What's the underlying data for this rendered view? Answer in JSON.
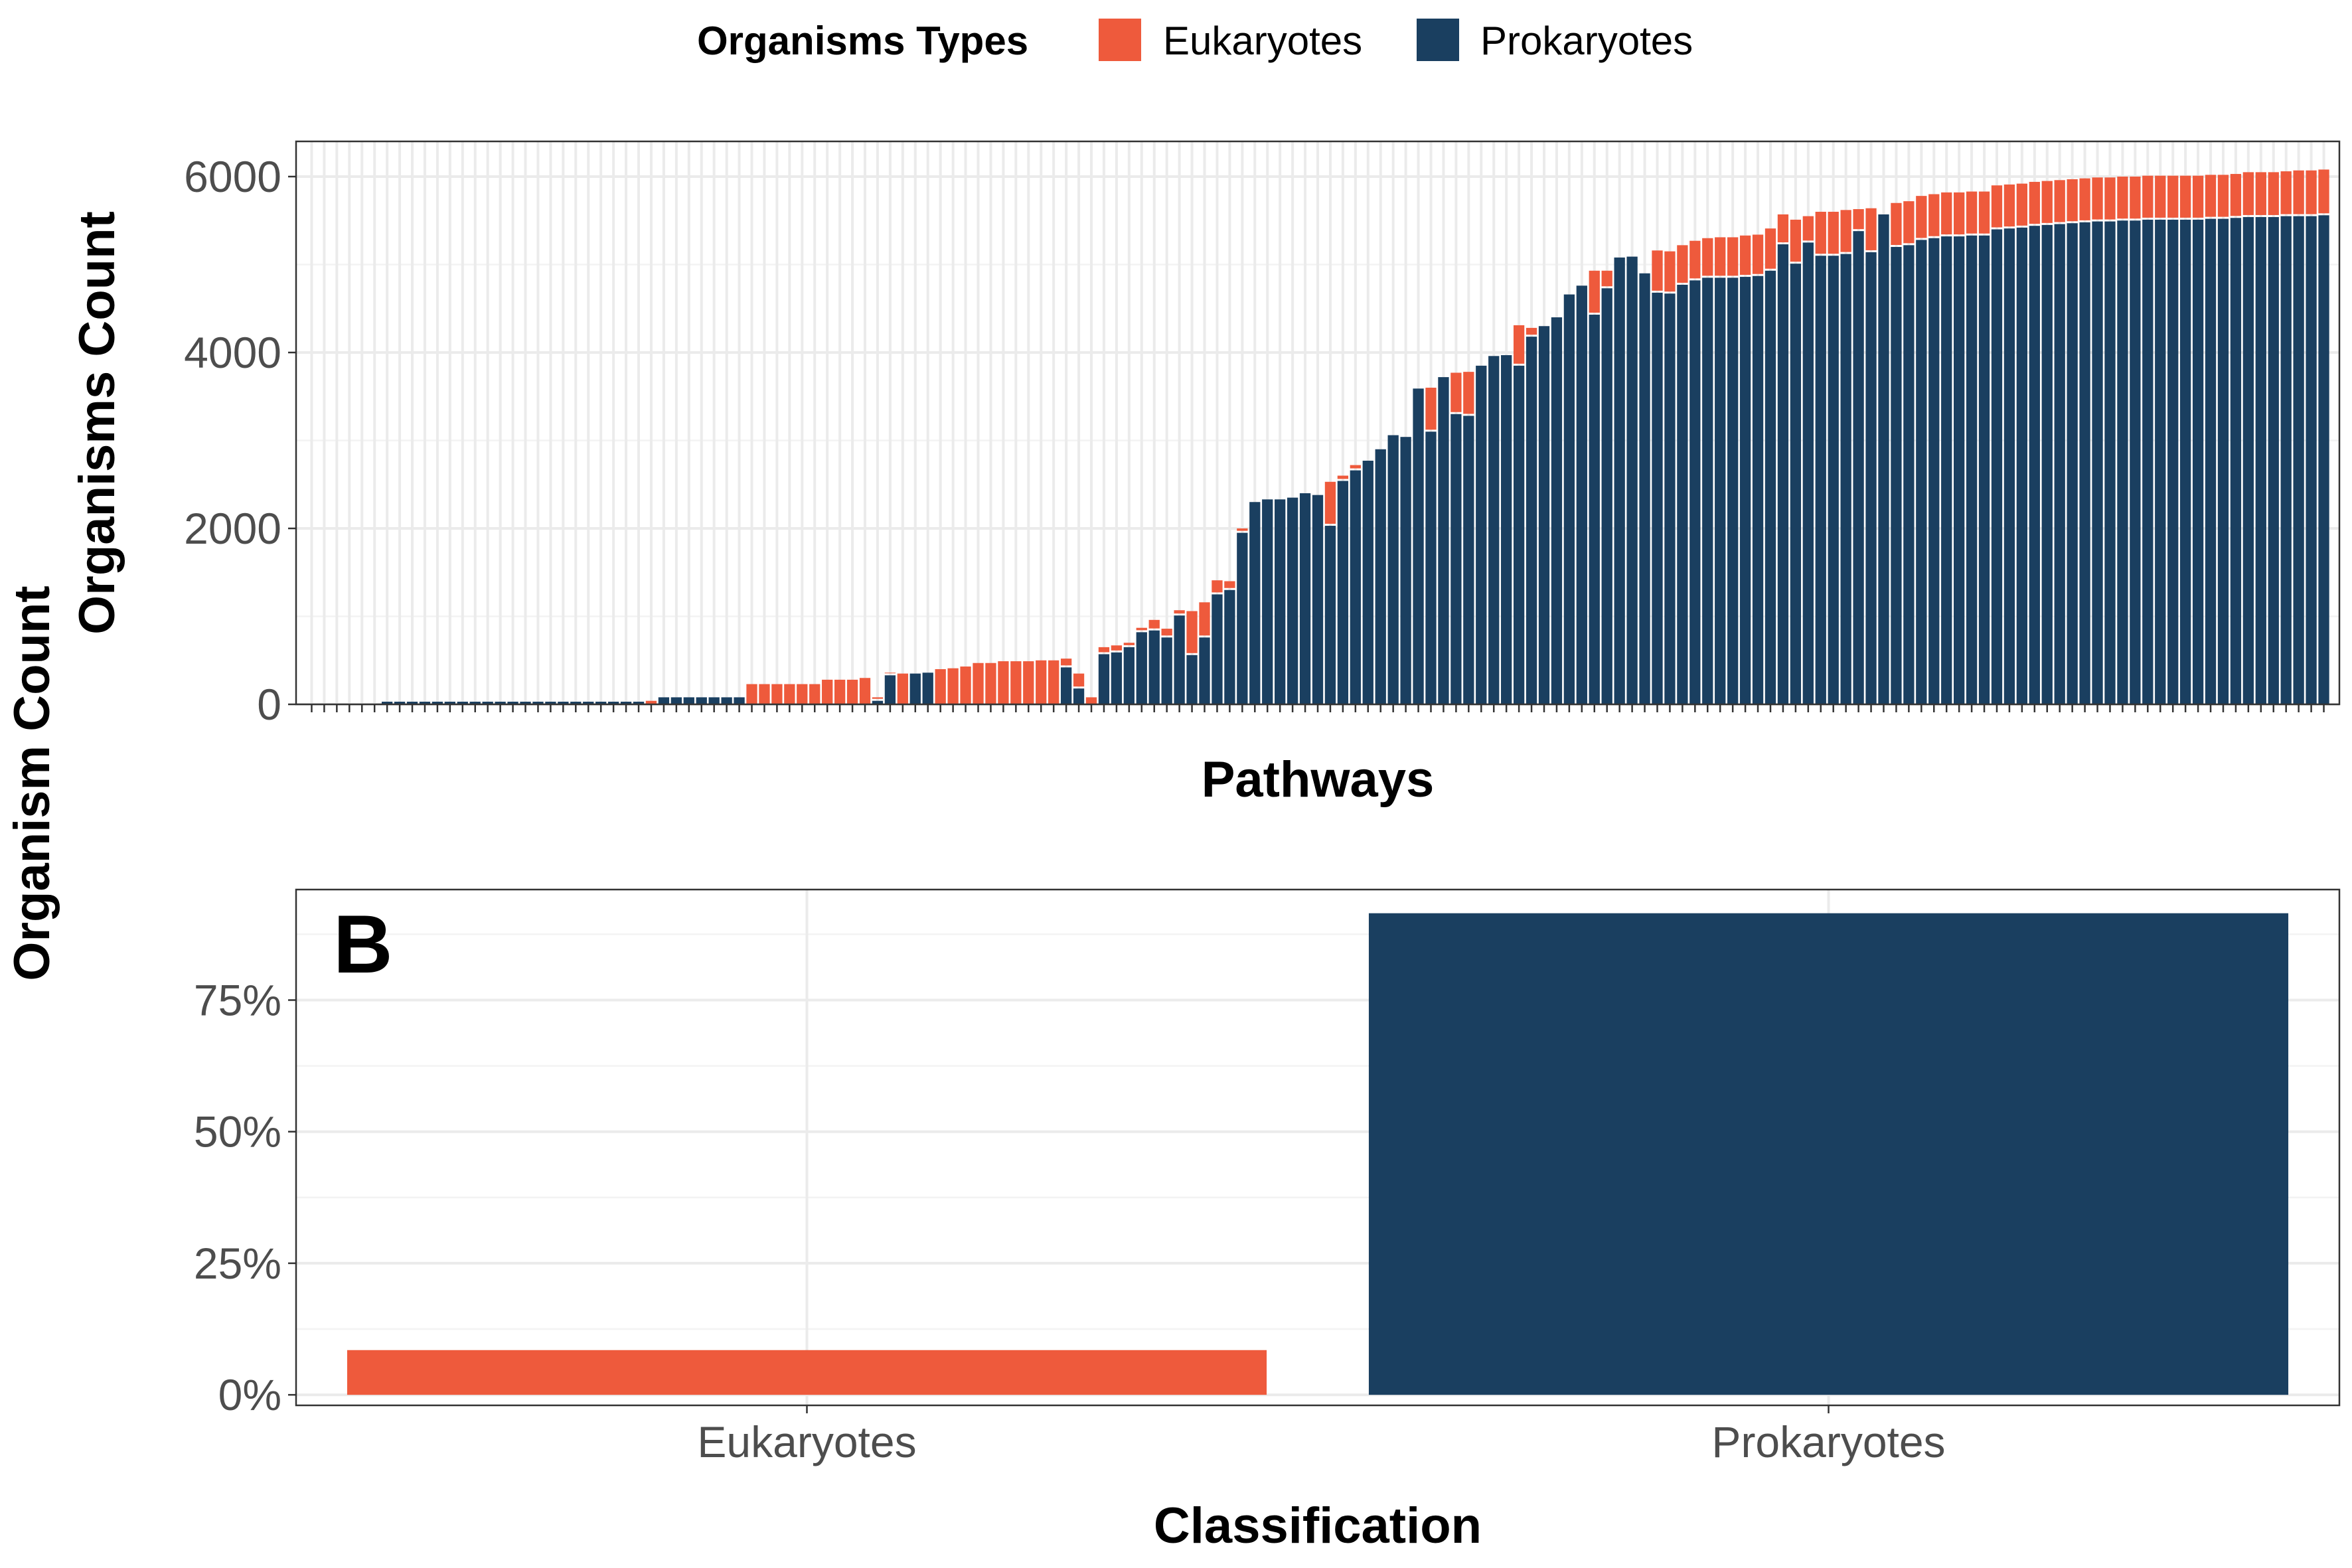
{
  "colors": {
    "Eukaryotes": "#EE5A3C",
    "Prokaryotes": "#1A3F60"
  },
  "legend": {
    "title": "Organisms Types",
    "items": [
      "Eukaryotes",
      "Prokaryotes"
    ]
  },
  "outer_ylabel": "Organism Count",
  "chart_data": [
    {
      "type": "bar",
      "stacked": true,
      "xlabel": "Pathways",
      "ylabel": "Organisms Count",
      "ylim": [
        0,
        6400
      ],
      "yticks": [
        0,
        2000,
        4000,
        6000
      ],
      "x_tick_labels_shown": false,
      "grid": true,
      "legend_position": "top",
      "series": [
        {
          "name": "Prokaryotes",
          "values": [
            0,
            0,
            0,
            0,
            0,
            0,
            30,
            30,
            30,
            30,
            30,
            30,
            30,
            30,
            30,
            30,
            30,
            30,
            30,
            30,
            30,
            30,
            30,
            30,
            30,
            30,
            30,
            0,
            80,
            80,
            80,
            80,
            80,
            80,
            80,
            0,
            0,
            0,
            0,
            0,
            0,
            0,
            0,
            0,
            0,
            40,
            330,
            0,
            350,
            360,
            0,
            0,
            0,
            0,
            0,
            0,
            0,
            0,
            0,
            0,
            420,
            180,
            0,
            570,
            590,
            650,
            820,
            840,
            760,
            1010,
            560,
            760,
            1250,
            1300,
            1950,
            2300,
            2330,
            2330,
            2350,
            2400,
            2380,
            2030,
            2540,
            2660,
            2770,
            2900,
            3060,
            3040,
            3590,
            3100,
            3720,
            3300,
            3280,
            3850,
            3960,
            3970,
            3850,
            4180,
            4300,
            4400,
            4660,
            4760,
            4430,
            4730,
            5080,
            5090,
            4900,
            4680,
            4670,
            4770,
            4820,
            4850,
            4850,
            4850,
            4860,
            4870,
            4930,
            5230,
            5010,
            5250,
            5100,
            5100,
            5120,
            5380,
            5140,
            5570,
            5200,
            5220,
            5280,
            5300,
            5320,
            5320,
            5330,
            5330,
            5400,
            5410,
            5420,
            5440,
            5450,
            5460,
            5470,
            5480,
            5490,
            5490,
            5500,
            5500,
            5510,
            5510,
            5510,
            5510,
            5510,
            5520,
            5520,
            5530,
            5540,
            5540,
            5540,
            5550,
            5550,
            5550,
            5560
          ]
        },
        {
          "name": "Eukaryotes",
          "values": [
            0,
            0,
            0,
            0,
            0,
            0,
            20,
            20,
            20,
            20,
            20,
            20,
            20,
            20,
            20,
            20,
            20,
            20,
            20,
            20,
            20,
            20,
            20,
            20,
            20,
            20,
            20,
            40,
            20,
            20,
            20,
            20,
            20,
            20,
            20,
            230,
            230,
            230,
            230,
            230,
            230,
            280,
            280,
            280,
            300,
            40,
            30,
            350,
            20,
            20,
            400,
            410,
            430,
            470,
            470,
            490,
            490,
            490,
            500,
            500,
            100,
            170,
            80,
            80,
            80,
            50,
            50,
            120,
            100,
            60,
            500,
            400,
            160,
            100,
            50,
            0,
            0,
            0,
            0,
            0,
            0,
            500,
            60,
            60,
            0,
            0,
            0,
            0,
            0,
            500,
            0,
            470,
            500,
            0,
            0,
            0,
            460,
            100,
            0,
            0,
            0,
            0,
            500,
            200,
            0,
            0,
            0,
            480,
            480,
            450,
            450,
            450,
            460,
            460,
            470,
            470,
            480,
            340,
            500,
            300,
            500,
            500,
            500,
            250,
            500,
            20,
            500,
            500,
            500,
            500,
            500,
            500,
            500,
            500,
            500,
            500,
            500,
            500,
            500,
            500,
            500,
            500,
            500,
            500,
            500,
            500,
            500,
            500,
            500,
            500,
            500,
            500,
            500,
            500,
            510,
            510,
            510,
            510,
            520,
            520,
            520,
            520,
            520
          ]
        }
      ]
    },
    {
      "type": "bar",
      "tag": "B",
      "categories": [
        "Eukaryotes",
        "Prokaryotes"
      ],
      "values": [
        0.085,
        0.915
      ],
      "xlabel": "Classification",
      "ylabel": "",
      "ylim": [
        -0.02,
        0.96
      ],
      "yticks": [
        0,
        0.25,
        0.5,
        0.75
      ],
      "ytick_labels": [
        "0%",
        "25%",
        "50%",
        "75%"
      ],
      "grid": true
    }
  ]
}
